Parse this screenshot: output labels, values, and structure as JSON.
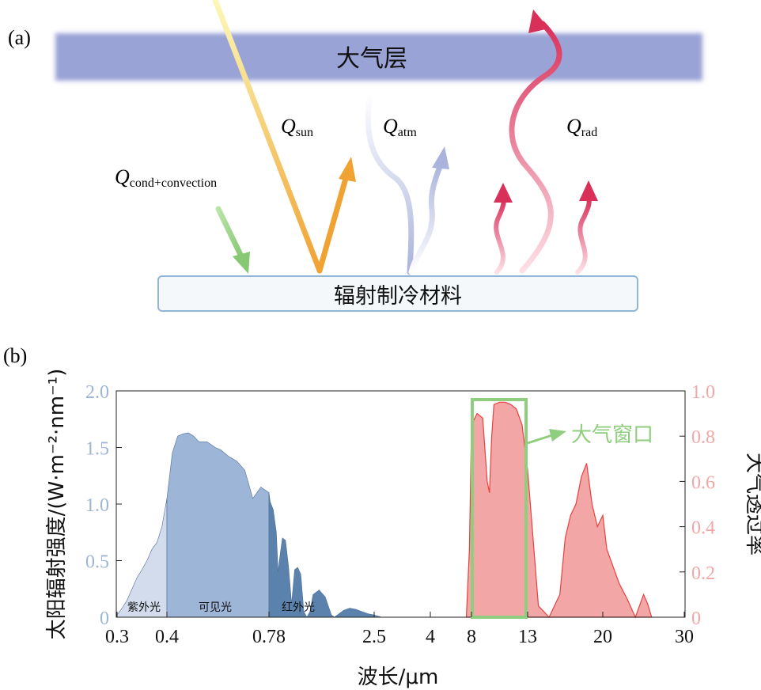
{
  "panel_a": {
    "label": "(a)",
    "atmosphere_label": "大气层",
    "material_label": "辐射制冷材料",
    "q_sun": {
      "symbol": "Q",
      "sub": "sun"
    },
    "q_atm": {
      "symbol": "Q",
      "sub": "atm"
    },
    "q_rad": {
      "symbol": "Q",
      "sub": "rad"
    },
    "q_cond": {
      "symbol": "Q",
      "sub": "cond+convection"
    },
    "colors": {
      "atmosphere": "#9aa3d6",
      "sun_start": "#fbf6a0",
      "sun_end": "#f2a33a",
      "atm": "#a9b3dc",
      "rad": "#d9385e",
      "cond": "#8fce7e",
      "box_border": "#8fb6d6"
    },
    "icons": [
      "sun-ray-arrow",
      "atmospheric-wave-arrow",
      "radiation-wave-arrow",
      "conduction-arrow"
    ]
  },
  "panel_b": {
    "label": "(b)",
    "window_label": "大气窗口",
    "band_labels": {
      "uv": "紫外光",
      "visible": "可见光",
      "ir": "红外光"
    },
    "colors": {
      "uv": "#d3dcec",
      "visible": "#9db5d7",
      "ir": "#5a82ad",
      "ir_tail": "#6f94bf",
      "trans_fill": "#f2a6a6",
      "trans_line": "#e8413f",
      "window_box": "#8fce7e",
      "left_axis": "#9db5d7",
      "right_axis": "#f2a6a6"
    }
  },
  "chart_data": {
    "type": "area",
    "xlabel": "波长/μm",
    "ylabel_left": "太阳辐射强度/(W·m⁻²·nm⁻¹)",
    "ylabel_right": "大气透过率",
    "x_ticks": [
      "0.3",
      "0.4",
      "0.78",
      "2.5",
      "4",
      "8",
      "13",
      "20",
      "30"
    ],
    "y_left_ticks": [
      "0",
      "0.5",
      "1.0",
      "1.5",
      "2.0"
    ],
    "y_right_ticks": [
      "0",
      "0.2",
      "0.4",
      "0.6",
      "0.8",
      "1.0"
    ],
    "y_left_range": [
      0,
      2.0
    ],
    "y_right_range": [
      0,
      1.0
    ],
    "series": [
      {
        "x": [
          0.3,
          0.31,
          0.32,
          0.33,
          0.34,
          0.35,
          0.36,
          0.37,
          0.38,
          0.39,
          0.4,
          0.42,
          0.44,
          0.46,
          0.48,
          0.5,
          0.52,
          0.55,
          0.58,
          0.6,
          0.63,
          0.66,
          0.69,
          0.72,
          0.75,
          0.78,
          0.8,
          0.85,
          0.9,
          0.93,
          0.95,
          1.0,
          1.05,
          1.1,
          1.15,
          1.2,
          1.25,
          1.3,
          1.35,
          1.4,
          1.45,
          1.5,
          1.6,
          1.7,
          1.8,
          1.85,
          1.9,
          2.0,
          2.1,
          2.2,
          2.3,
          2.4,
          2.5,
          2.6,
          2.7
        ],
        "values": [
          0.02,
          0.08,
          0.15,
          0.25,
          0.35,
          0.42,
          0.5,
          0.6,
          0.66,
          0.8,
          1.05,
          1.45,
          1.6,
          1.62,
          1.63,
          1.6,
          1.55,
          1.55,
          1.5,
          1.48,
          1.42,
          1.38,
          1.3,
          1.05,
          1.15,
          1.1,
          1.02,
          0.95,
          0.75,
          0.4,
          0.5,
          0.7,
          0.68,
          0.45,
          0.12,
          0.42,
          0.44,
          0.38,
          0.05,
          0.0,
          0.05,
          0.2,
          0.24,
          0.18,
          0.02,
          0.0,
          0.02,
          0.06,
          0.08,
          0.07,
          0.05,
          0.03,
          0.02,
          0.01,
          0.0
        ]
      },
      {
        "x": [
          7.5,
          7.8,
          8.0,
          8.5,
          9.0,
          9.4,
          9.6,
          9.8,
          10.0,
          10.5,
          11.0,
          11.5,
          12.0,
          12.5,
          13.0,
          13.5,
          14.0,
          15.0,
          16.0,
          16.5,
          17.0,
          17.5,
          18.0,
          18.5,
          19.0,
          19.5,
          20.0,
          20.5,
          21.0,
          22.0,
          23.0,
          24.0,
          25.0,
          25.5,
          26.0
        ],
        "values": [
          0.0,
          0.3,
          0.85,
          0.9,
          0.88,
          0.6,
          0.55,
          0.8,
          0.94,
          0.95,
          0.95,
          0.94,
          0.92,
          0.85,
          0.65,
          0.35,
          0.05,
          0.0,
          0.1,
          0.35,
          0.45,
          0.5,
          0.62,
          0.68,
          0.5,
          0.4,
          0.45,
          0.3,
          0.25,
          0.15,
          0.08,
          0.0,
          0.1,
          0.06,
          0.0
        ]
      }
    ]
  }
}
